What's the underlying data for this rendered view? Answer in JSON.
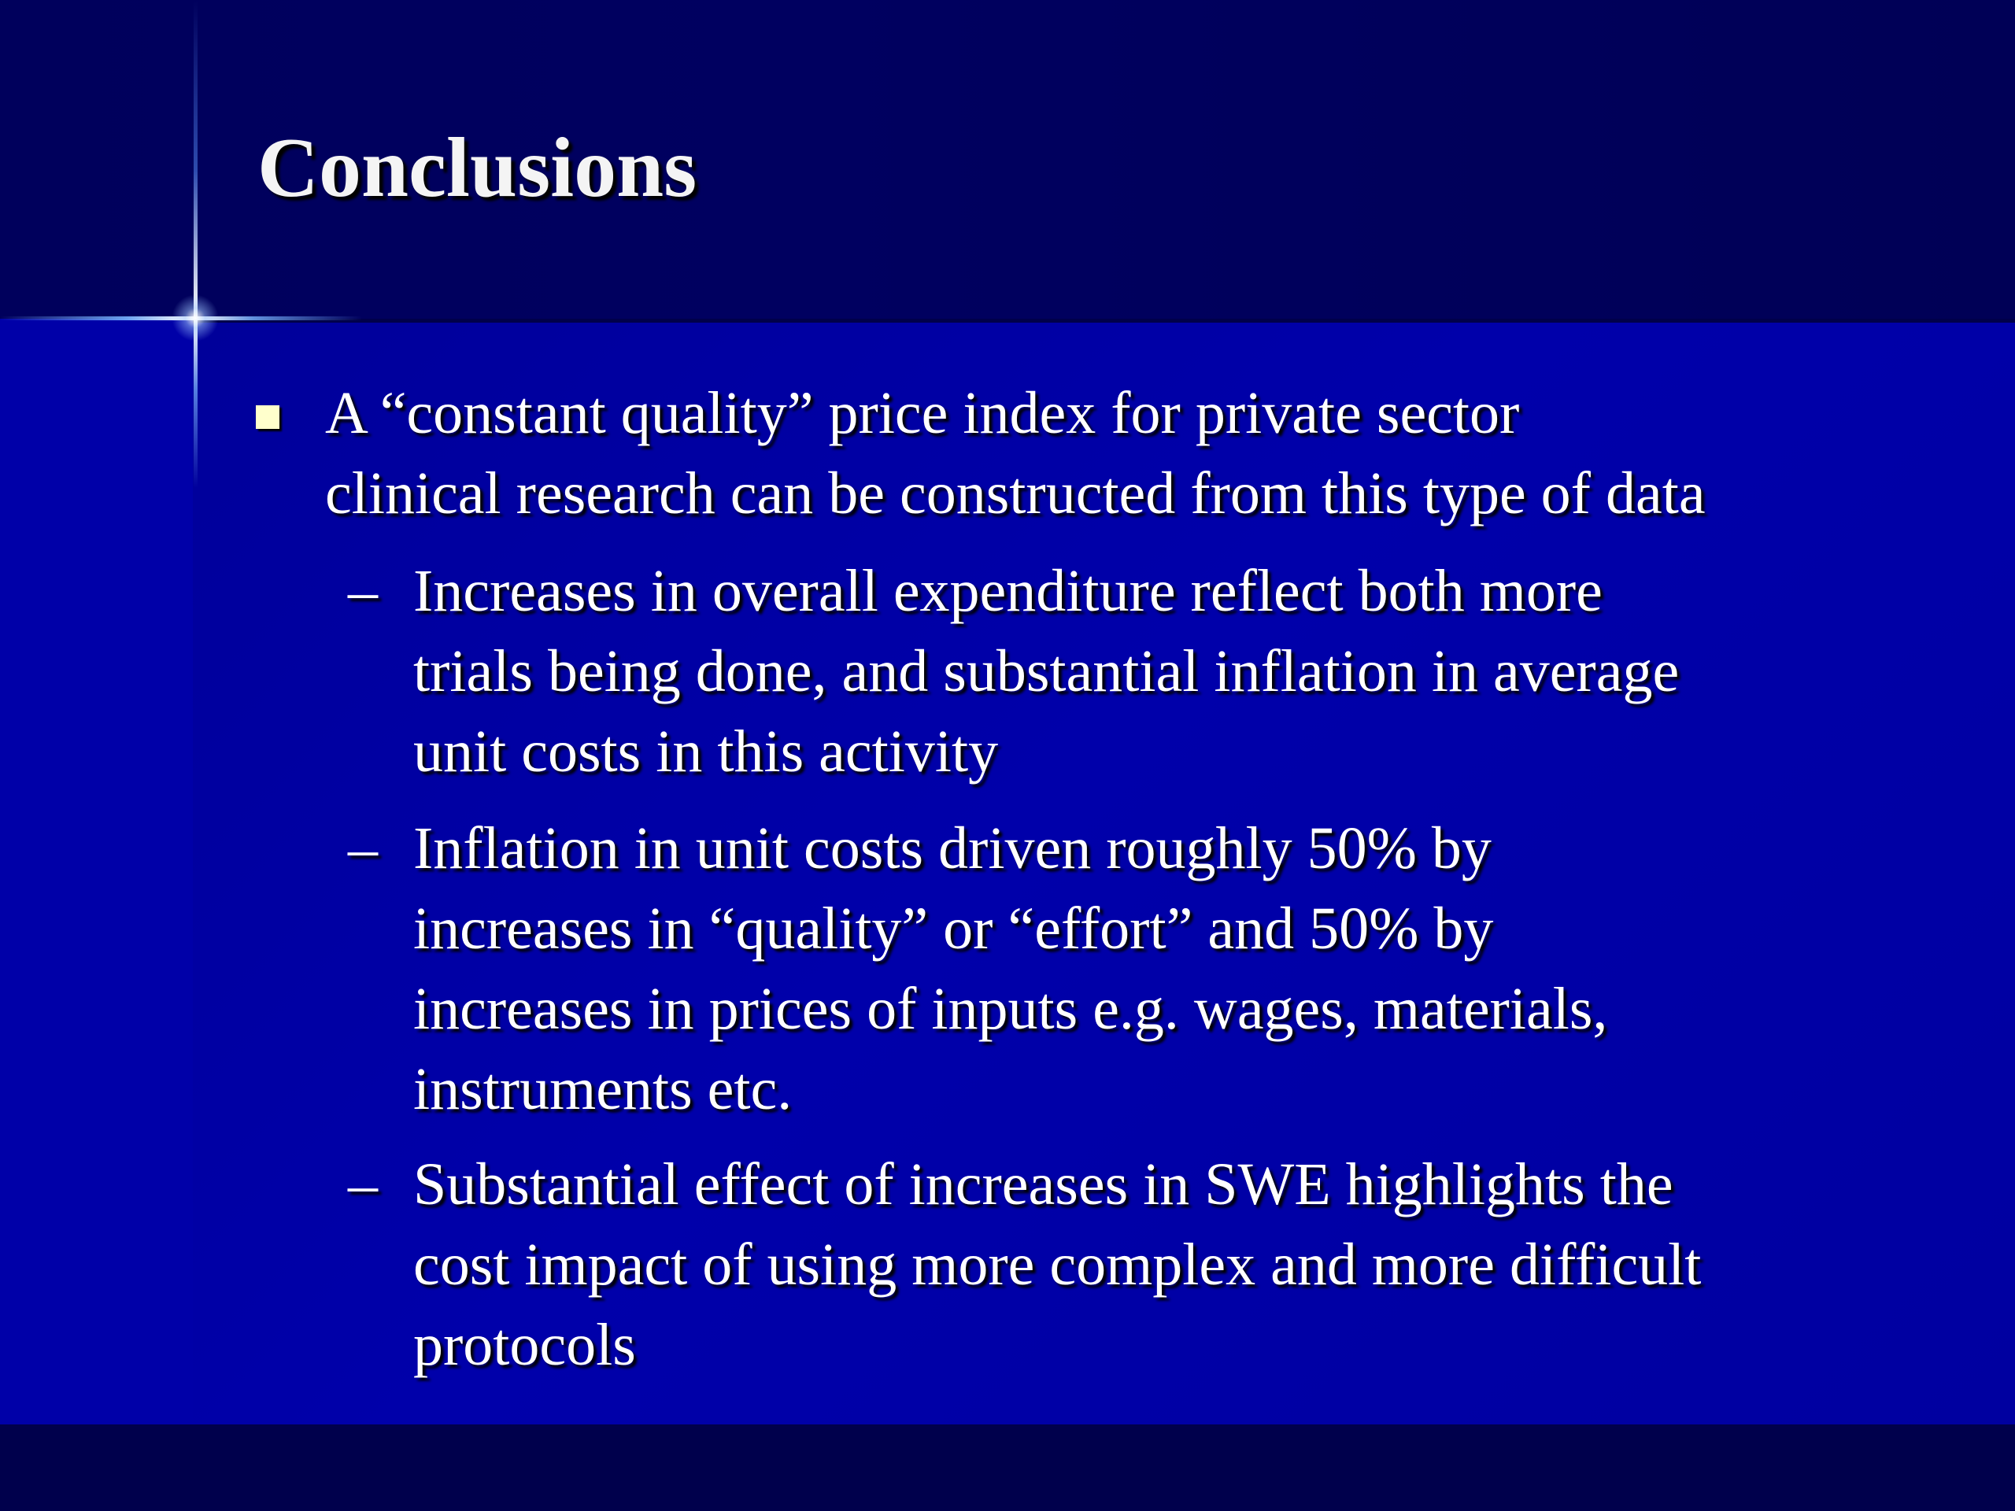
{
  "slide": {
    "title": "Conclusions",
    "bullet": {
      "lines": [
        "A “constant quality” price index for private sector",
        "clinical research can be constructed from this type of data"
      ],
      "sub_bullets": [
        {
          "marker": "–",
          "lines": [
            "Increases in overall expenditure reflect both more",
            "trials being done, and substantial inflation in average",
            "unit costs in this activity"
          ]
        },
        {
          "marker": "–",
          "lines": [
            "Inflation in unit costs driven roughly 50% by",
            "increases in “quality” or “effort” and 50% by",
            "increases in prices of inputs e.g. wages, materials,",
            "instruments etc."
          ]
        },
        {
          "marker": "–",
          "lines": [
            "Substantial effect of increases in SWE highlights the",
            "cost impact of using more complex and more difficult",
            "protocols"
          ]
        }
      ]
    }
  },
  "colors": {
    "background_dark": "#00004a",
    "content_blue": "#0000aa",
    "text": "#ffffff",
    "bullet_square": "#ffffcc"
  }
}
